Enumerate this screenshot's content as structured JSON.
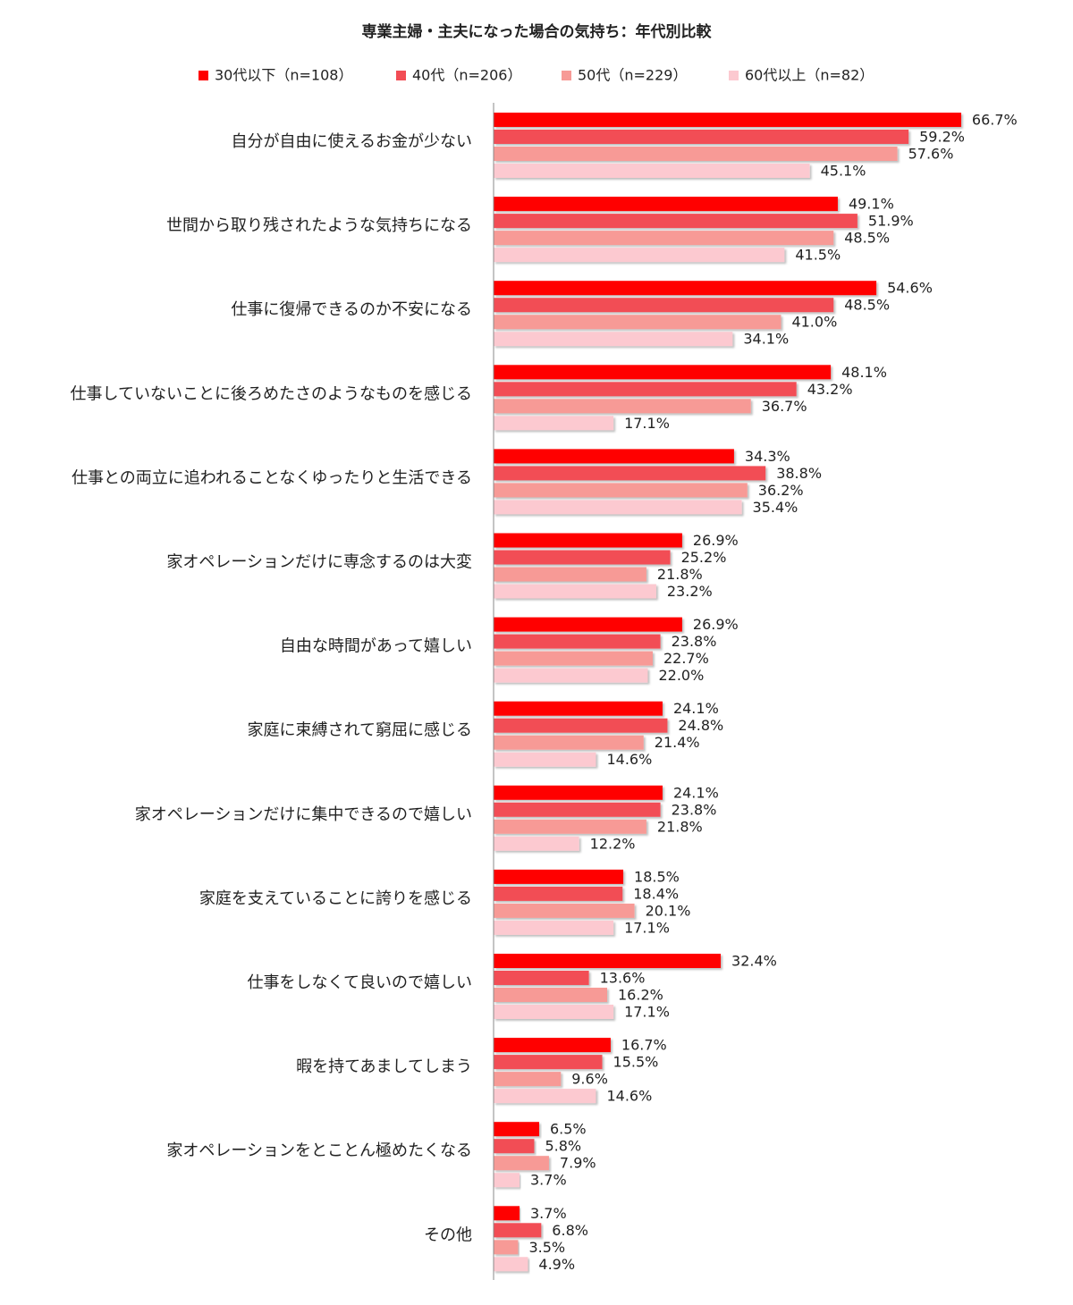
{
  "chart_data": {
    "type": "bar",
    "orientation": "horizontal",
    "title": "専業主婦・主夫になった場合の気持ち：年代別比較",
    "legend": "top",
    "categories": [
      "自分が自由に使えるお金が少ない",
      "世間から取り残されたような気持ちになる",
      "仕事に復帰できるのか不安になる",
      "仕事していないことに後ろめたさのようなものを感じる",
      "仕事との両立に追われることなくゆったりと生活できる",
      "家オペレーションだけに専念するのは大変",
      "自由な時間があって嬉しい",
      "家庭に束縛されて窮屈に感じる",
      "家オペレーションだけに集中できるので嬉しい",
      "家庭を支えていることに誇りを感じる",
      "仕事をしなくて良いので嬉しい",
      "暇を持てあましてしまう",
      "家オペレーションをとことん極めたくなる",
      "その他"
    ],
    "series": [
      {
        "name": "30代以下（n=108）",
        "color": "#ff0000",
        "values": [
          66.7,
          49.1,
          54.6,
          48.1,
          34.3,
          26.9,
          26.9,
          24.1,
          24.1,
          18.5,
          32.4,
          16.7,
          6.5,
          3.7
        ],
        "value_labels": [
          "66.7%",
          "49.1%",
          "54.6%",
          "48.1%",
          "34.3%",
          "26.9%",
          "26.9%",
          "24.1%",
          "24.1%",
          "18.5%",
          "32.4%",
          "16.7%",
          "6.5%",
          "3.7%"
        ]
      },
      {
        "name": "40代（n=206）",
        "color": "#f24d55",
        "values": [
          59.2,
          51.9,
          48.5,
          43.2,
          38.8,
          25.2,
          23.8,
          24.8,
          23.8,
          18.4,
          13.6,
          15.5,
          5.8,
          6.8
        ],
        "value_labels": [
          "59.2%",
          "51.9%",
          "48.5%",
          "43.2%",
          "38.8%",
          "25.2%",
          "23.8%",
          "24.8%",
          "23.8%",
          "18.4%",
          "13.6%",
          "15.5%",
          "5.8%",
          "6.8%"
        ]
      },
      {
        "name": "50代（n=229）",
        "color": "#f79a96",
        "values": [
          57.6,
          48.5,
          41.0,
          36.7,
          36.2,
          21.8,
          22.7,
          21.4,
          21.8,
          20.1,
          16.2,
          9.6,
          7.9,
          3.5
        ],
        "value_labels": [
          "57.6%",
          "48.5%",
          "41.0%",
          "36.7%",
          "36.2%",
          "21.8%",
          "22.7%",
          "21.4%",
          "21.8%",
          "20.1%",
          "16.2%",
          "9.6%",
          "7.9%",
          "3.5%"
        ]
      },
      {
        "name": "60代以上（n=82）",
        "color": "#fcc9d0",
        "values": [
          45.1,
          41.5,
          34.1,
          17.1,
          35.4,
          23.2,
          22.0,
          14.6,
          12.2,
          17.1,
          17.1,
          14.6,
          3.7,
          4.9
        ],
        "value_labels": [
          "45.1%",
          "41.5%",
          "34.1%",
          "17.1%",
          "35.4%",
          "23.2%",
          "22.0%",
          "14.6%",
          "12.2%",
          "17.1%",
          "17.1%",
          "14.6%",
          "3.7%",
          "4.9%"
        ]
      }
    ]
  }
}
